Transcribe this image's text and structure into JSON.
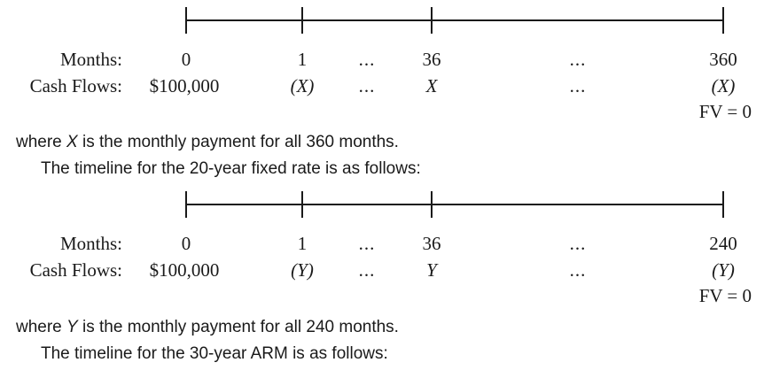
{
  "timeline1": {
    "months_label": "Months:",
    "cashflows_label": "Cash Flows:",
    "months": [
      "0",
      "1",
      "...",
      "36",
      "...",
      "360"
    ],
    "cashflows": [
      "$100,000",
      "(X)",
      "...",
      "X",
      "...",
      "(X)"
    ],
    "fv": "FV = 0"
  },
  "text1": {
    "line1_pre": "where ",
    "line1_var": "X",
    "line1_post": " is the monthly payment for all 360 months.",
    "line2": "The timeline for the 20-year fixed rate is as follows:"
  },
  "timeline2": {
    "months_label": "Months:",
    "cashflows_label": "Cash Flows:",
    "months": [
      "0",
      "1",
      "...",
      "36",
      "...",
      "240"
    ],
    "cashflows": [
      "$100,000",
      "(Y)",
      "...",
      "Y",
      "...",
      "(Y)"
    ],
    "fv": "FV = 0"
  },
  "text2": {
    "line1_pre": "where ",
    "line1_var": "Y",
    "line1_post": " is the monthly payment for all 240 months.",
    "line2": "The timeline for the 30-year ARM is as follows:"
  }
}
